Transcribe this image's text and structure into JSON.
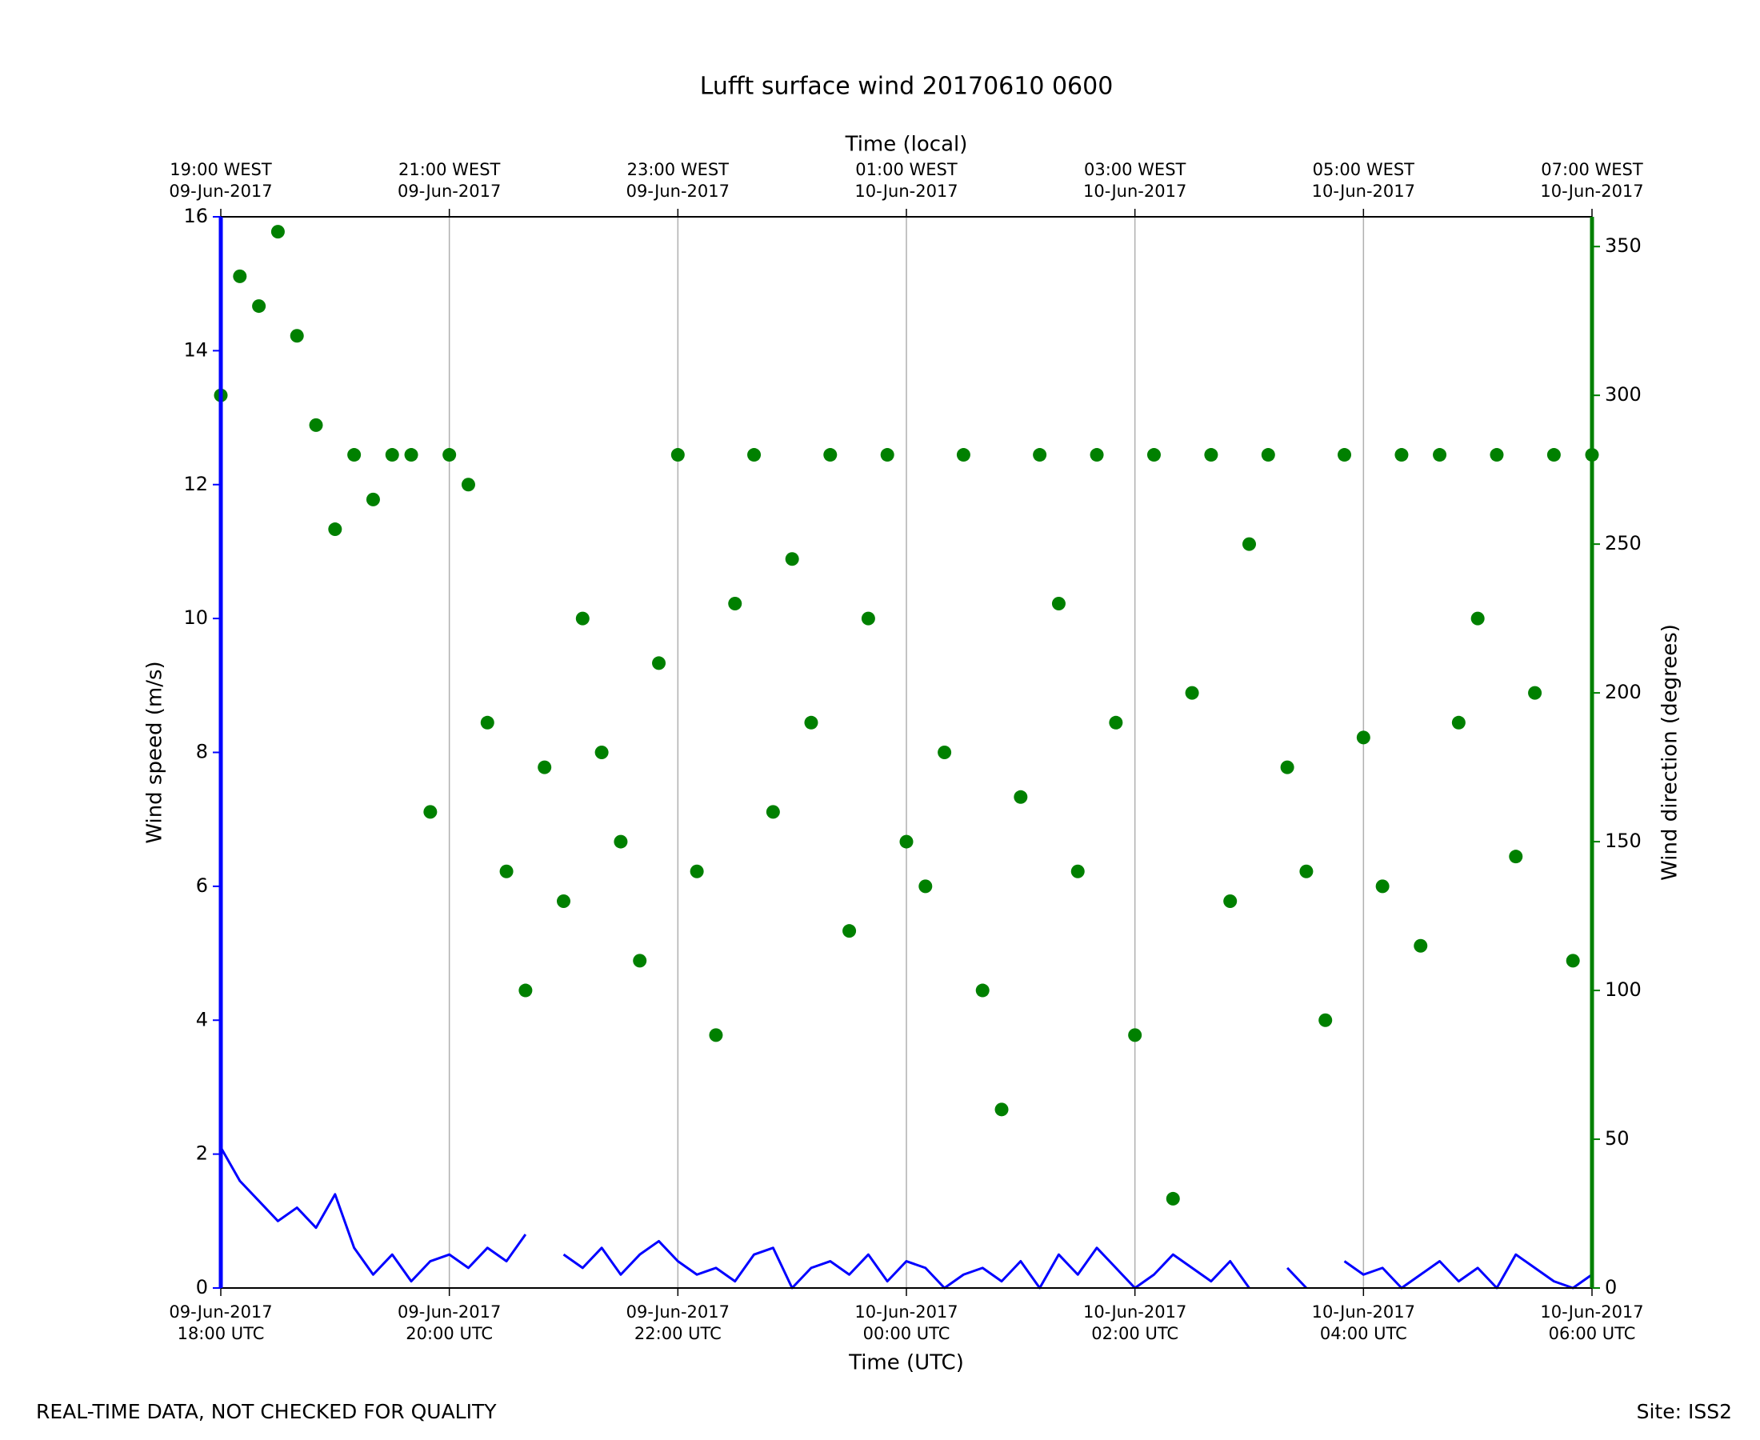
{
  "chart_data": {
    "type": "line",
    "title": "Lufft surface wind 20170610 0600",
    "xlabel": "Time (UTC)",
    "x2label": "Time (local)",
    "ylabel": "Wind speed (m/s)",
    "y2label": "Wind direction (degrees)",
    "footer_left": "REAL-TIME DATA, NOT CHECKED FOR QUALITY",
    "footer_right": "Site: ISS2",
    "grid": true,
    "xlim": [
      "2017-06-09T18:00",
      "2017-06-10T06:00"
    ],
    "xticks": [
      {
        "value": "2017-06-09T18:00",
        "label": [
          "09-Jun-2017",
          "18:00 UTC"
        ]
      },
      {
        "value": "2017-06-09T20:00",
        "label": [
          "09-Jun-2017",
          "20:00 UTC"
        ]
      },
      {
        "value": "2017-06-09T22:00",
        "label": [
          "09-Jun-2017",
          "22:00 UTC"
        ]
      },
      {
        "value": "2017-06-10T00:00",
        "label": [
          "10-Jun-2017",
          "00:00 UTC"
        ]
      },
      {
        "value": "2017-06-10T02:00",
        "label": [
          "10-Jun-2017",
          "02:00 UTC"
        ]
      },
      {
        "value": "2017-06-10T04:00",
        "label": [
          "10-Jun-2017",
          "04:00 UTC"
        ]
      },
      {
        "value": "2017-06-10T06:00",
        "label": [
          "10-Jun-2017",
          "06:00 UTC"
        ]
      }
    ],
    "x2ticks": [
      {
        "value": "2017-06-09T18:00",
        "label": [
          "19:00 WEST",
          "09-Jun-2017"
        ]
      },
      {
        "value": "2017-06-09T20:00",
        "label": [
          "21:00 WEST",
          "09-Jun-2017"
        ]
      },
      {
        "value": "2017-06-09T22:00",
        "label": [
          "23:00 WEST",
          "09-Jun-2017"
        ]
      },
      {
        "value": "2017-06-10T00:00",
        "label": [
          "01:00 WEST",
          "10-Jun-2017"
        ]
      },
      {
        "value": "2017-06-10T02:00",
        "label": [
          "03:00 WEST",
          "10-Jun-2017"
        ]
      },
      {
        "value": "2017-06-10T04:00",
        "label": [
          "05:00 WEST",
          "10-Jun-2017"
        ]
      },
      {
        "value": "2017-06-10T06:00",
        "label": [
          "07:00 WEST",
          "10-Jun-2017"
        ]
      }
    ],
    "ylim": [
      0,
      16
    ],
    "yticks": [
      0,
      2,
      4,
      6,
      8,
      10,
      12,
      14,
      16
    ],
    "y2lim": [
      0,
      360
    ],
    "y2ticks": [
      0,
      50,
      100,
      150,
      200,
      250,
      300,
      350
    ],
    "ycolor": "#0000ff",
    "y2color": "#008000",
    "x": [
      "2017-06-09T18:00",
      "2017-06-09T18:10",
      "2017-06-09T18:20",
      "2017-06-09T18:30",
      "2017-06-09T18:40",
      "2017-06-09T18:50",
      "2017-06-09T19:00",
      "2017-06-09T19:10",
      "2017-06-09T19:20",
      "2017-06-09T19:30",
      "2017-06-09T19:40",
      "2017-06-09T19:50",
      "2017-06-09T20:00",
      "2017-06-09T20:10",
      "2017-06-09T20:20",
      "2017-06-09T20:30",
      "2017-06-09T20:40",
      "2017-06-09T20:50",
      "2017-06-09T21:00",
      "2017-06-09T21:10",
      "2017-06-09T21:20",
      "2017-06-09T21:30",
      "2017-06-09T21:40",
      "2017-06-09T21:50",
      "2017-06-09T22:00",
      "2017-06-09T22:10",
      "2017-06-09T22:20",
      "2017-06-09T22:30",
      "2017-06-09T22:40",
      "2017-06-09T22:50",
      "2017-06-09T23:00",
      "2017-06-09T23:10",
      "2017-06-09T23:20",
      "2017-06-09T23:30",
      "2017-06-09T23:40",
      "2017-06-09T23:50",
      "2017-06-10T00:00",
      "2017-06-10T00:10",
      "2017-06-10T00:20",
      "2017-06-10T00:30",
      "2017-06-10T00:40",
      "2017-06-10T00:50",
      "2017-06-10T01:00",
      "2017-06-10T01:10",
      "2017-06-10T01:20",
      "2017-06-10T01:30",
      "2017-06-10T01:40",
      "2017-06-10T01:50",
      "2017-06-10T02:00",
      "2017-06-10T02:10",
      "2017-06-10T02:20",
      "2017-06-10T02:30",
      "2017-06-10T02:40",
      "2017-06-10T02:50",
      "2017-06-10T03:00",
      "2017-06-10T03:10",
      "2017-06-10T03:20",
      "2017-06-10T03:30",
      "2017-06-10T03:40",
      "2017-06-10T03:50",
      "2017-06-10T04:00",
      "2017-06-10T04:10",
      "2017-06-10T04:20",
      "2017-06-10T04:30",
      "2017-06-10T04:40",
      "2017-06-10T04:50",
      "2017-06-10T05:00",
      "2017-06-10T05:10",
      "2017-06-10T05:20",
      "2017-06-10T05:30",
      "2017-06-10T05:40",
      "2017-06-10T05:50",
      "2017-06-10T06:00"
    ],
    "series": [
      {
        "name": "Wind speed",
        "type": "line",
        "axis": "y",
        "color": "#0000ff",
        "values": [
          2.1,
          1.6,
          1.3,
          1.0,
          1.2,
          0.9,
          1.4,
          0.6,
          0.2,
          0.5,
          0.1,
          0.4,
          0.5,
          0.3,
          0.6,
          0.4,
          0.8,
          null,
          0.5,
          0.3,
          0.6,
          0.2,
          0.5,
          0.7,
          0.4,
          0.2,
          0.3,
          0.1,
          0.5,
          0.6,
          0.0,
          0.3,
          0.4,
          0.2,
          0.5,
          0.1,
          0.4,
          0.3,
          0.0,
          0.2,
          0.3,
          0.1,
          0.4,
          0.0,
          0.5,
          0.2,
          0.6,
          0.3,
          0.0,
          0.2,
          0.5,
          0.3,
          0.1,
          0.4,
          0.0,
          null,
          0.3,
          0.0,
          null,
          0.4,
          0.2,
          0.3,
          0.0,
          0.2,
          0.4,
          0.1,
          0.3,
          0.0,
          0.5,
          0.3,
          0.1,
          0.0,
          0.2
        ]
      },
      {
        "name": "Wind direction",
        "type": "scatter",
        "axis": "y2",
        "color": "#008000",
        "values": [
          300,
          340,
          330,
          355,
          320,
          290,
          255,
          280,
          265,
          280,
          280,
          160,
          280,
          270,
          190,
          140,
          100,
          175,
          130,
          225,
          180,
          150,
          110,
          210,
          280,
          140,
          85,
          230,
          280,
          160,
          245,
          190,
          280,
          120,
          225,
          280,
          150,
          135,
          180,
          280,
          100,
          60,
          165,
          280,
          230,
          140,
          280,
          190,
          85,
          280,
          30,
          200,
          280,
          130,
          250,
          280,
          175,
          140,
          90,
          280,
          185,
          135,
          280,
          115,
          280,
          190,
          225,
          280,
          145,
          200,
          280,
          110,
          280
        ]
      }
    ]
  }
}
